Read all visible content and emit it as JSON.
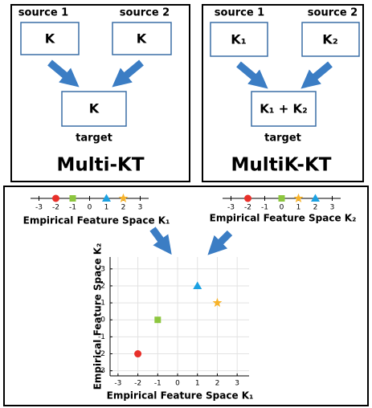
{
  "panels": [
    {
      "sources": [
        "source 1",
        "source 2"
      ],
      "source_labels": [
        "K",
        "K"
      ],
      "target_label": "K",
      "target_caption": "target",
      "title": "Multi-KT"
    },
    {
      "sources": [
        "source 1",
        "source 2"
      ],
      "source_labels": [
        "K₁",
        "K₂"
      ],
      "target_label": "K₁ + K₂",
      "target_caption": "target",
      "title": "MultiK-KT"
    }
  ],
  "chart_data": [
    {
      "type": "number-line",
      "xlabel": "Empirical Feature Space K₁",
      "xlim": [
        -3.5,
        3.5
      ],
      "xticks": [
        -3,
        -2,
        -1,
        0,
        1,
        2,
        3
      ],
      "series": [
        {
          "color": "#e8302a",
          "marker": "circle",
          "x": [
            -2
          ]
        },
        {
          "color": "#8dc63f",
          "marker": "square",
          "x": [
            -1
          ]
        },
        {
          "color": "#1ba1e2",
          "marker": "triangle",
          "x": [
            1
          ]
        },
        {
          "color": "#f7b32b",
          "marker": "star",
          "x": [
            2
          ]
        }
      ]
    },
    {
      "type": "number-line",
      "xlabel": "Empirical Feature Space K₂",
      "xlim": [
        -3.5,
        3.5
      ],
      "xticks": [
        -3,
        -2,
        -1,
        0,
        1,
        2,
        3
      ],
      "series": [
        {
          "color": "#e8302a",
          "marker": "circle",
          "x": [
            -2
          ]
        },
        {
          "color": "#8dc63f",
          "marker": "square",
          "x": [
            0
          ]
        },
        {
          "color": "#f7b32b",
          "marker": "star",
          "x": [
            1
          ]
        },
        {
          "color": "#1ba1e2",
          "marker": "triangle",
          "x": [
            2
          ]
        }
      ]
    },
    {
      "type": "scatter",
      "xlabel": "Empirical Feature Space K₁",
      "ylabel": "Empirical Feature Space K₂",
      "xlim": [
        -3.4,
        3.6
      ],
      "ylim": [
        -3.3,
        3.7
      ],
      "xticks": [
        -3,
        -2,
        -1,
        0,
        1,
        2,
        3
      ],
      "yticks": [
        -3,
        -2,
        -1,
        0,
        1,
        2,
        3
      ],
      "grid": true,
      "series": [
        {
          "color": "#e8302a",
          "marker": "circle",
          "x": [
            -2
          ],
          "y": [
            -2
          ]
        },
        {
          "color": "#8dc63f",
          "marker": "square",
          "x": [
            -1
          ],
          "y": [
            0
          ]
        },
        {
          "color": "#1ba1e2",
          "marker": "triangle",
          "x": [
            1
          ],
          "y": [
            2
          ]
        },
        {
          "color": "#f7b32b",
          "marker": "star",
          "x": [
            2
          ],
          "y": [
            1
          ]
        }
      ]
    }
  ]
}
